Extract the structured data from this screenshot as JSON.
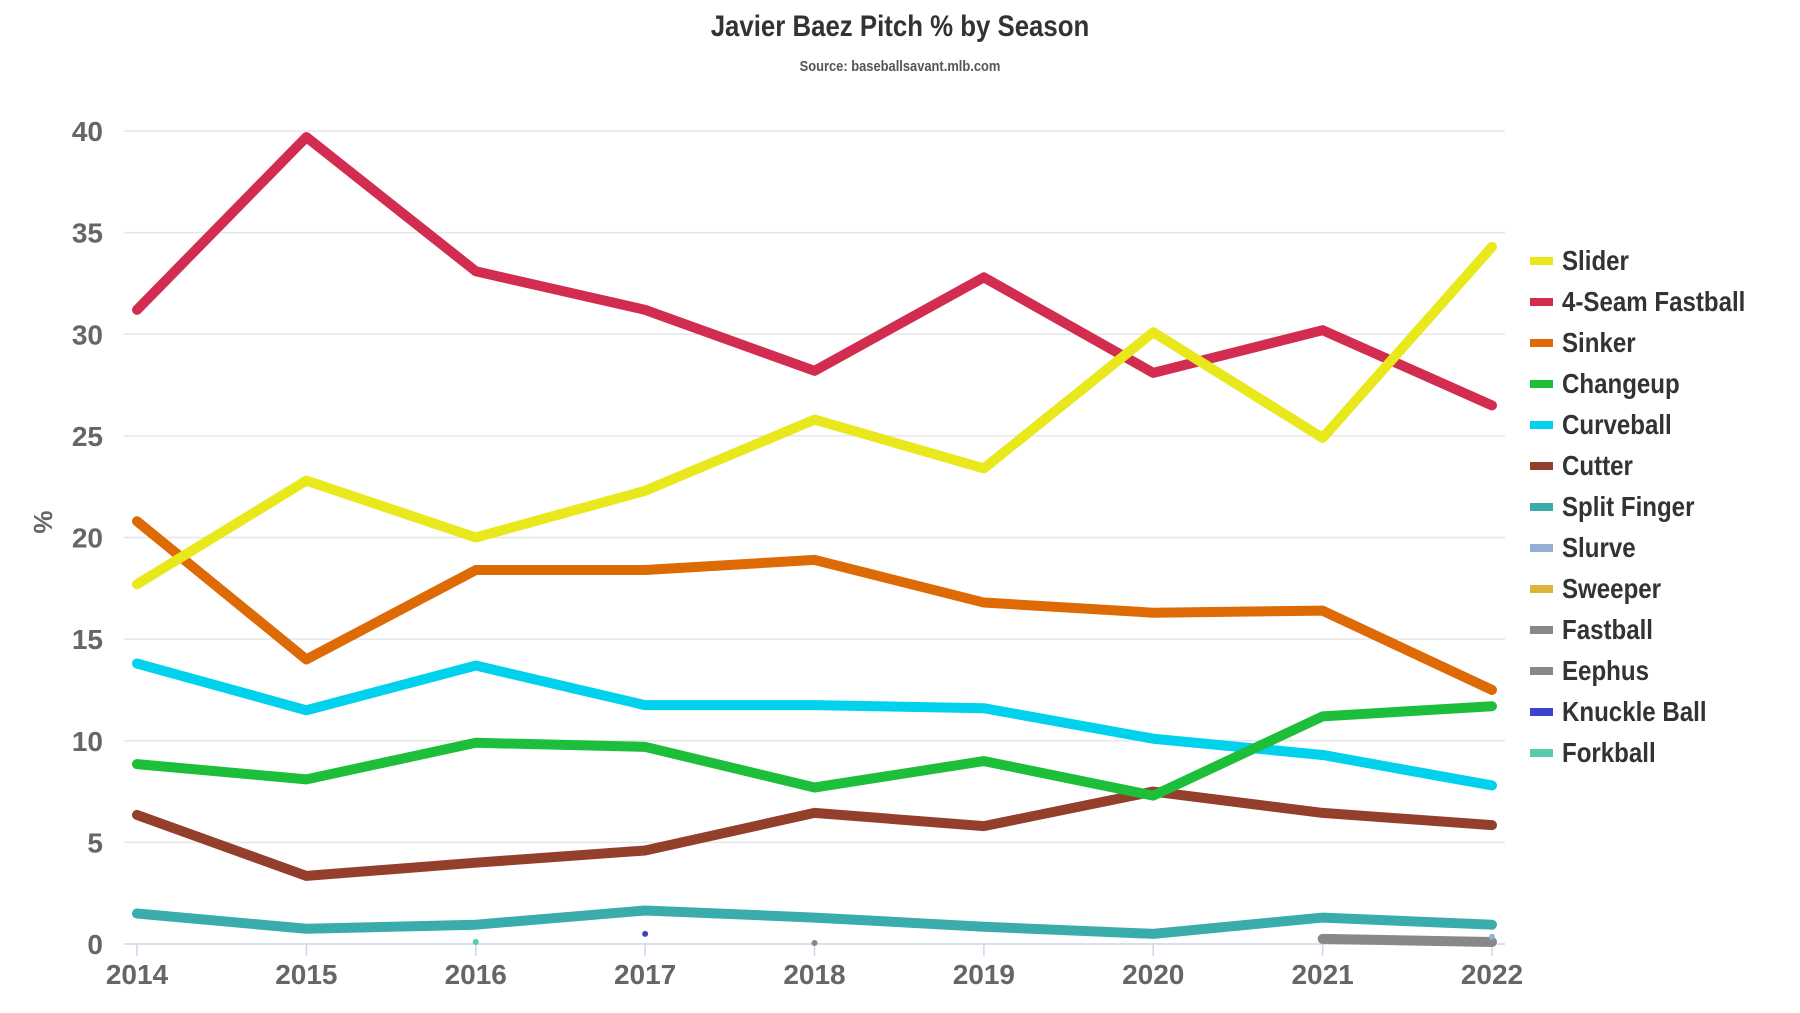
{
  "chart_data": {
    "type": "line",
    "title": "Javier Baez Pitch % by Season",
    "subtitle": "Source: baseballsavant.mlb.com",
    "xlabel": "",
    "ylabel": "%",
    "ylim": [
      0,
      40
    ],
    "yticks": [
      0,
      5,
      10,
      15,
      20,
      25,
      30,
      35,
      40
    ],
    "x": [
      2014,
      2015,
      2016,
      2017,
      2018,
      2019,
      2020,
      2021,
      2022
    ],
    "grid": true,
    "legend_position": "right",
    "series": [
      {
        "name": "Slider",
        "color": "#E8E81C",
        "values": [
          17.7,
          22.8,
          20.0,
          22.3,
          25.8,
          23.4,
          30.1,
          24.9,
          34.3
        ]
      },
      {
        "name": "4-Seam Fastball",
        "color": "#D22D50",
        "values": [
          31.2,
          39.7,
          33.1,
          31.2,
          28.2,
          32.8,
          28.1,
          30.2,
          26.5
        ]
      },
      {
        "name": "Sinker",
        "color": "#DE6A06",
        "values": [
          20.8,
          14.0,
          18.4,
          18.4,
          18.9,
          16.8,
          16.3,
          16.4,
          12.5
        ]
      },
      {
        "name": "Changeup",
        "color": "#1DBE3A",
        "values": [
          8.85,
          8.1,
          9.9,
          9.7,
          7.7,
          9.0,
          7.3,
          11.2,
          11.7
        ]
      },
      {
        "name": "Curveball",
        "color": "#00D1ED",
        "values": [
          13.8,
          11.5,
          13.7,
          11.75,
          11.75,
          11.6,
          10.1,
          9.3,
          7.8
        ]
      },
      {
        "name": "Cutter",
        "color": "#933F2C",
        "values": [
          6.35,
          3.35,
          4.0,
          4.6,
          6.45,
          5.8,
          7.5,
          6.45,
          5.85
        ]
      },
      {
        "name": "Split Finger",
        "color": "#3BACAC",
        "values": [
          1.5,
          0.75,
          0.95,
          1.65,
          1.3,
          0.85,
          0.5,
          1.3,
          0.95
        ]
      },
      {
        "name": "Slurve",
        "color": "#93AFD4",
        "values": [
          null,
          null,
          null,
          null,
          null,
          null,
          null,
          null,
          0.35
        ]
      },
      {
        "name": "Sweeper",
        "color": "#DDB33A",
        "values": [
          null,
          null,
          null,
          null,
          null,
          null,
          null,
          null,
          null
        ]
      },
      {
        "name": "Fastball",
        "color": "#888888",
        "values": [
          null,
          null,
          null,
          null,
          null,
          null,
          null,
          0.25,
          0.1
        ]
      },
      {
        "name": "Eephus",
        "color": "#888888",
        "values": [
          null,
          null,
          null,
          null,
          0.05,
          null,
          0.5,
          null,
          null
        ]
      },
      {
        "name": "Knuckle Ball",
        "color": "#3C44CD",
        "values": [
          null,
          null,
          null,
          0.5,
          null,
          null,
          null,
          null,
          null
        ]
      },
      {
        "name": "Forkball",
        "color": "#55CCAB",
        "values": [
          null,
          null,
          0.1,
          null,
          null,
          null,
          null,
          null,
          null
        ]
      }
    ]
  }
}
